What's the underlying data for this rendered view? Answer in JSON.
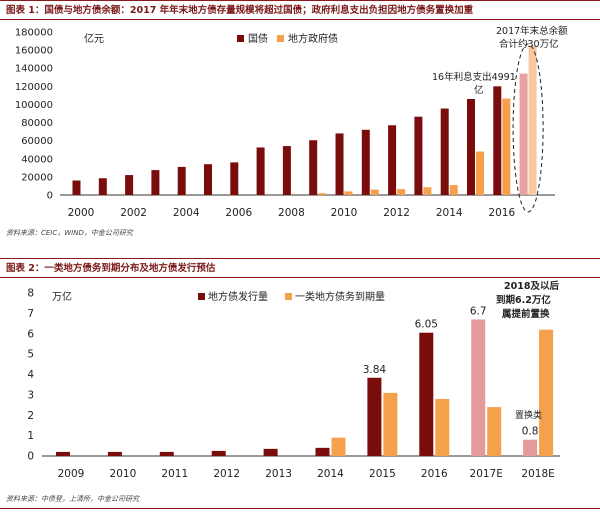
{
  "chart_data": [
    {
      "type": "bar",
      "title": "图表 1：国债与地方债余额：2017 年年末地方债存量规模将超过国债；政府利息支出负担因地方债务置换加重",
      "ylabel": "亿元",
      "ylim": [
        0,
        180000
      ],
      "yticks": [
        "0",
        "20000",
        "40000",
        "60000",
        "80000",
        "100000",
        "120000",
        "140000",
        "160000",
        "180000"
      ],
      "x_tick_labels": [
        "2000",
        "2002",
        "2004",
        "2006",
        "2008",
        "2010",
        "2012",
        "2014",
        "2016"
      ],
      "categories": [
        "2000",
        "2001",
        "2002",
        "2003",
        "2004",
        "2005",
        "2006",
        "2007",
        "2008",
        "2009",
        "2010",
        "2011",
        "2012",
        "2013",
        "2014",
        "2015",
        "2016",
        "2017"
      ],
      "series": [
        {
          "name": "国债",
          "color": "#7b0c0c",
          "values": [
            16000,
            18500,
            22000,
            27500,
            31000,
            34000,
            36000,
            52500,
            54000,
            60500,
            68000,
            72000,
            77000,
            86500,
            95500,
            106000,
            120000,
            134000
          ]
        },
        {
          "name": "地方政府债",
          "color": "#f5a04a",
          "values": [
            0,
            0,
            0,
            0,
            0,
            0,
            0,
            0,
            0,
            2000,
            4000,
            6000,
            6500,
            8500,
            11000,
            48000,
            106500,
            165000
          ]
        }
      ],
      "legend": "top-center",
      "annotations": [
        "16年利息支出4991亿",
        "2017年末总余额合计约30万亿"
      ],
      "source": "资料来源：CEIC，WIND，中金公司研究"
    },
    {
      "type": "bar",
      "title": "图表 2：一类地方债务到期分布及地方债发行预估",
      "ylabel": "万亿",
      "ylim": [
        0,
        8
      ],
      "yticks": [
        "0",
        "1",
        "2",
        "3",
        "4",
        "5",
        "6",
        "7",
        "8"
      ],
      "categories": [
        "2009",
        "2010",
        "2011",
        "2012",
        "2013",
        "2014",
        "2015",
        "2016",
        "2017E",
        "2018E"
      ],
      "series": [
        {
          "name": "地方债发行量",
          "color": "#7b0c0c",
          "values": [
            0.2,
            0.2,
            0.2,
            0.25,
            0.35,
            0.4,
            3.84,
            6.05,
            6.7,
            0.8
          ]
        },
        {
          "name": "一类地方债务到期量",
          "color": "#f5a04a",
          "values": [
            0,
            0,
            0,
            0,
            0,
            0.9,
            3.1,
            2.8,
            2.4,
            6.2
          ]
        }
      ],
      "highlight_color": "#e39a9a",
      "highlighted_points": [
        "2017E",
        "2018E"
      ],
      "data_labels": {
        "2015": "3.84",
        "2016": "6.05",
        "2017E": "6.7",
        "2018E": "0.8"
      },
      "legend": "top-center",
      "annotations": [
        "2018及以后到期6.2万亿属提前置换",
        "置换类"
      ],
      "source": "资料来源：中债登，上清所，中金公司研究"
    }
  ]
}
